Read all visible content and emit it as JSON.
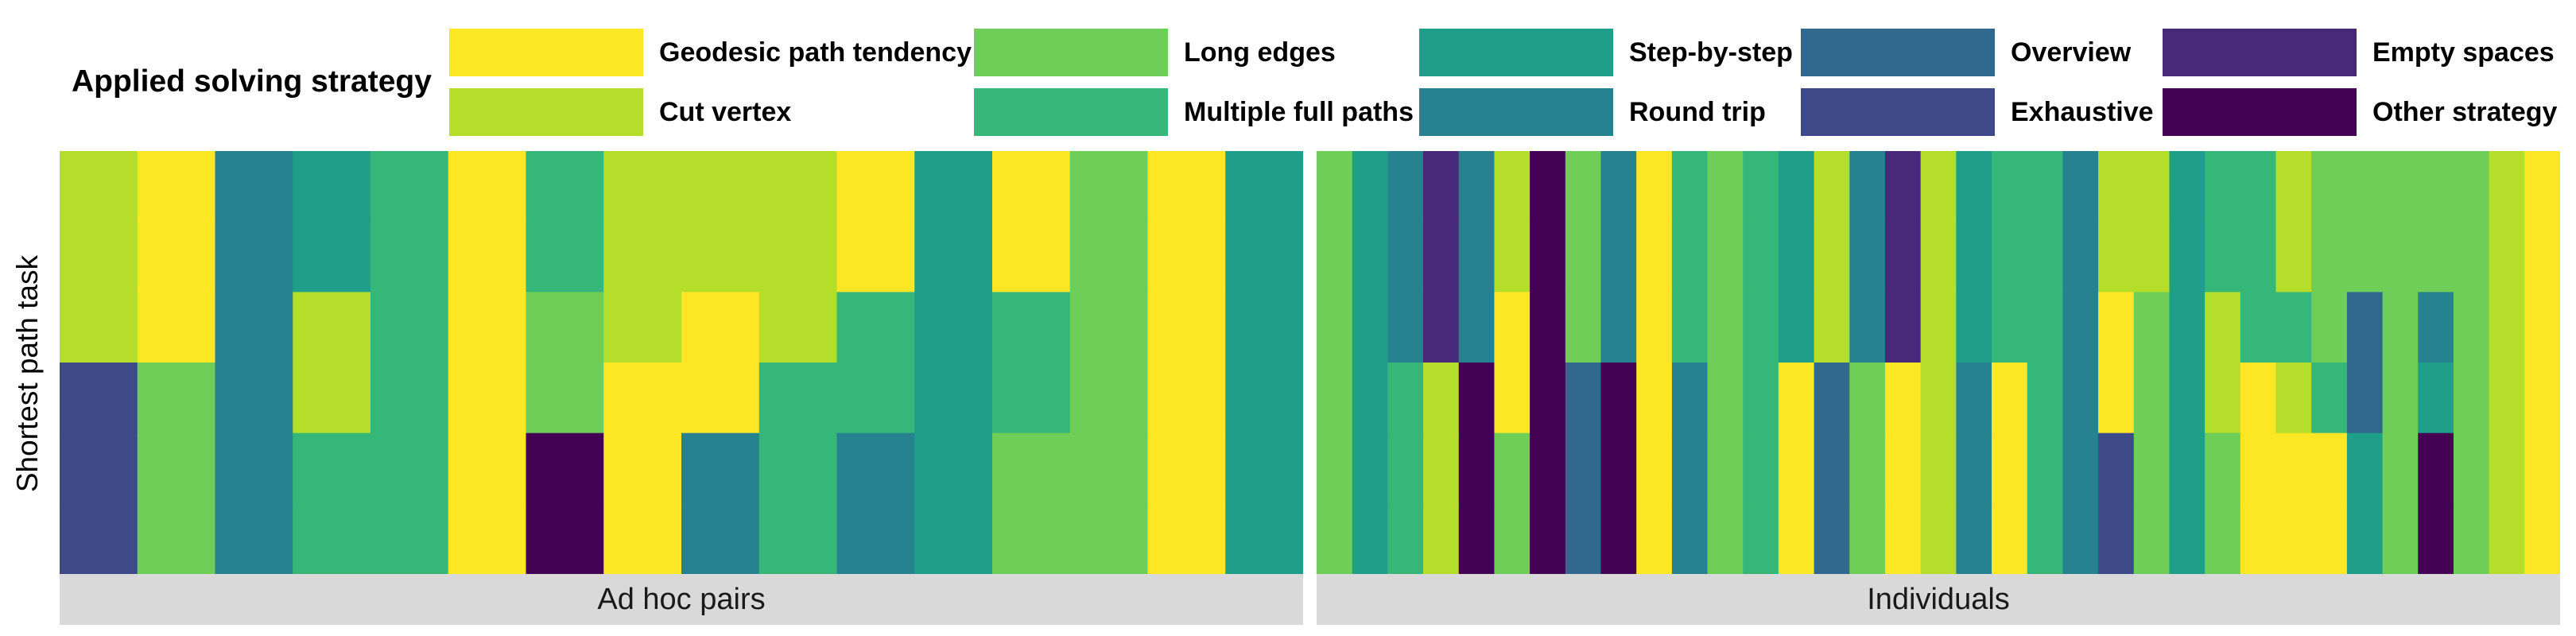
{
  "chart_data": {
    "type": "heatmap",
    "legend_title": "Applied solving strategy",
    "ylabel": "Shortest path task",
    "categories": [
      {
        "name": "Geodesic path tendency",
        "color": "#fde725"
      },
      {
        "name": "Cut vertex",
        "color": "#b5de2b"
      },
      {
        "name": "Long edges",
        "color": "#6ece58"
      },
      {
        "name": "Multiple full paths",
        "color": "#35b779"
      },
      {
        "name": "Step-by-step",
        "color": "#1f9e89"
      },
      {
        "name": "Round trip",
        "color": "#26828e"
      },
      {
        "name": "Overview",
        "color": "#31688e"
      },
      {
        "name": "Exhaustive",
        "color": "#3e4989"
      },
      {
        "name": "Empty spaces",
        "color": "#482878"
      },
      {
        "name": "Other strategy",
        "color": "#440154"
      }
    ],
    "legend_layout": [
      [
        "Geodesic path tendency",
        "Long edges",
        "Step-by-step",
        "Overview",
        "Empty spaces"
      ],
      [
        "Cut vertex",
        "Multiple full paths",
        "Round trip",
        "Exhaustive",
        "Other strategy"
      ]
    ],
    "panels": [
      {
        "label": "Ad hoc pairs",
        "columns": 16,
        "rows": 6,
        "cells": [
          [
            "Cut vertex",
            "Geodesic path tendency",
            "Round trip",
            "Step-by-step",
            "Multiple full paths",
            "Geodesic path tendency",
            "Multiple full paths",
            "Cut vertex",
            "Cut vertex",
            "Cut vertex",
            "Geodesic path tendency",
            "Step-by-step",
            "Geodesic path tendency",
            "Long edges",
            "Geodesic path tendency",
            "Step-by-step"
          ],
          [
            "Cut vertex",
            "Geodesic path tendency",
            "Round trip",
            "Step-by-step",
            "Multiple full paths",
            "Geodesic path tendency",
            "Multiple full paths",
            "Cut vertex",
            "Cut vertex",
            "Cut vertex",
            "Geodesic path tendency",
            "Step-by-step",
            "Geodesic path tendency",
            "Long edges",
            "Geodesic path tendency",
            "Step-by-step"
          ],
          [
            "Cut vertex",
            "Geodesic path tendency",
            "Round trip",
            "Cut vertex",
            "Multiple full paths",
            "Geodesic path tendency",
            "Long edges",
            "Cut vertex",
            "Geodesic path tendency",
            "Cut vertex",
            "Multiple full paths",
            "Step-by-step",
            "Multiple full paths",
            "Long edges",
            "Geodesic path tendency",
            "Step-by-step"
          ],
          [
            "Exhaustive",
            "Long edges",
            "Round trip",
            "Cut vertex",
            "Multiple full paths",
            "Geodesic path tendency",
            "Long edges",
            "Geodesic path tendency",
            "Geodesic path tendency",
            "Multiple full paths",
            "Multiple full paths",
            "Step-by-step",
            "Multiple full paths",
            "Long edges",
            "Geodesic path tendency",
            "Step-by-step"
          ],
          [
            "Exhaustive",
            "Long edges",
            "Round trip",
            "Multiple full paths",
            "Multiple full paths",
            "Geodesic path tendency",
            "Other strategy",
            "Geodesic path tendency",
            "Round trip",
            "Multiple full paths",
            "Round trip",
            "Step-by-step",
            "Long edges",
            "Long edges",
            "Geodesic path tendency",
            "Step-by-step"
          ],
          [
            "Exhaustive",
            "Long edges",
            "Round trip",
            "Multiple full paths",
            "Multiple full paths",
            "Geodesic path tendency",
            "Other strategy",
            "Geodesic path tendency",
            "Round trip",
            "Multiple full paths",
            "Round trip",
            "Step-by-step",
            "Long edges",
            "Long edges",
            "Geodesic path tendency",
            "Step-by-step"
          ]
        ]
      },
      {
        "label": "Individuals",
        "columns": 35,
        "rows": 6,
        "cells": [
          [
            "Long edges",
            "Step-by-step",
            "Round trip",
            "Empty spaces",
            "Round trip",
            "Cut vertex",
            "Other strategy",
            "Long edges",
            "Round trip",
            "Geodesic path tendency",
            "Multiple full paths",
            "Long edges",
            "Multiple full paths",
            "Step-by-step",
            "Cut vertex",
            "Round trip",
            "Empty spaces",
            "Cut vertex",
            "Step-by-step",
            "Multiple full paths",
            "Multiple full paths",
            "Round trip",
            "Cut vertex",
            "Cut vertex",
            "Step-by-step",
            "Multiple full paths",
            "Multiple full paths",
            "Cut vertex",
            "Long edges",
            "Long edges",
            "Long edges",
            "Long edges",
            "Long edges",
            "Cut vertex",
            "Geodesic path tendency"
          ],
          [
            "Long edges",
            "Step-by-step",
            "Round trip",
            "Empty spaces",
            "Round trip",
            "Cut vertex",
            "Other strategy",
            "Long edges",
            "Round trip",
            "Geodesic path tendency",
            "Multiple full paths",
            "Long edges",
            "Multiple full paths",
            "Step-by-step",
            "Cut vertex",
            "Round trip",
            "Empty spaces",
            "Cut vertex",
            "Step-by-step",
            "Multiple full paths",
            "Multiple full paths",
            "Round trip",
            "Cut vertex",
            "Cut vertex",
            "Step-by-step",
            "Multiple full paths",
            "Multiple full paths",
            "Cut vertex",
            "Long edges",
            "Long edges",
            "Long edges",
            "Long edges",
            "Long edges",
            "Cut vertex",
            "Geodesic path tendency"
          ],
          [
            "Long edges",
            "Step-by-step",
            "Round trip",
            "Empty spaces",
            "Round trip",
            "Geodesic path tendency",
            "Other strategy",
            "Long edges",
            "Round trip",
            "Geodesic path tendency",
            "Multiple full paths",
            "Long edges",
            "Multiple full paths",
            "Step-by-step",
            "Cut vertex",
            "Round trip",
            "Empty spaces",
            "Cut vertex",
            "Step-by-step",
            "Multiple full paths",
            "Multiple full paths",
            "Round trip",
            "Geodesic path tendency",
            "Long edges",
            "Step-by-step",
            "Cut vertex",
            "Multiple full paths",
            "Multiple full paths",
            "Long edges",
            "Overview",
            "Long edges",
            "Round trip",
            "Long edges",
            "Cut vertex",
            "Geodesic path tendency"
          ],
          [
            "Long edges",
            "Step-by-step",
            "Multiple full paths",
            "Cut vertex",
            "Other strategy",
            "Geodesic path tendency",
            "Other strategy",
            "Overview",
            "Other strategy",
            "Geodesic path tendency",
            "Round trip",
            "Long edges",
            "Multiple full paths",
            "Geodesic path tendency",
            "Overview",
            "Long edges",
            "Geodesic path tendency",
            "Cut vertex",
            "Round trip",
            "Geodesic path tendency",
            "Multiple full paths",
            "Round trip",
            "Geodesic path tendency",
            "Long edges",
            "Step-by-step",
            "Cut vertex",
            "Geodesic path tendency",
            "Cut vertex",
            "Multiple full paths",
            "Overview",
            "Long edges",
            "Step-by-step",
            "Long edges",
            "Cut vertex",
            "Geodesic path tendency"
          ],
          [
            "Long edges",
            "Step-by-step",
            "Multiple full paths",
            "Cut vertex",
            "Other strategy",
            "Long edges",
            "Other strategy",
            "Overview",
            "Other strategy",
            "Geodesic path tendency",
            "Round trip",
            "Long edges",
            "Multiple full paths",
            "Geodesic path tendency",
            "Overview",
            "Long edges",
            "Geodesic path tendency",
            "Cut vertex",
            "Round trip",
            "Geodesic path tendency",
            "Multiple full paths",
            "Round trip",
            "Exhaustive",
            "Long edges",
            "Step-by-step",
            "Long edges",
            "Geodesic path tendency",
            "Geodesic path tendency",
            "Geodesic path tendency",
            "Step-by-step",
            "Long edges",
            "Other strategy",
            "Long edges",
            "Cut vertex",
            "Geodesic path tendency"
          ],
          [
            "Long edges",
            "Step-by-step",
            "Multiple full paths",
            "Cut vertex",
            "Other strategy",
            "Long edges",
            "Other strategy",
            "Overview",
            "Other strategy",
            "Geodesic path tendency",
            "Round trip",
            "Long edges",
            "Multiple full paths",
            "Geodesic path tendency",
            "Overview",
            "Long edges",
            "Geodesic path tendency",
            "Cut vertex",
            "Round trip",
            "Geodesic path tendency",
            "Multiple full paths",
            "Round trip",
            "Exhaustive",
            "Long edges",
            "Step-by-step",
            "Long edges",
            "Geodesic path tendency",
            "Geodesic path tendency",
            "Geodesic path tendency",
            "Step-by-step",
            "Long edges",
            "Other strategy",
            "Long edges",
            "Cut vertex",
            "Geodesic path tendency"
          ]
        ]
      }
    ]
  }
}
